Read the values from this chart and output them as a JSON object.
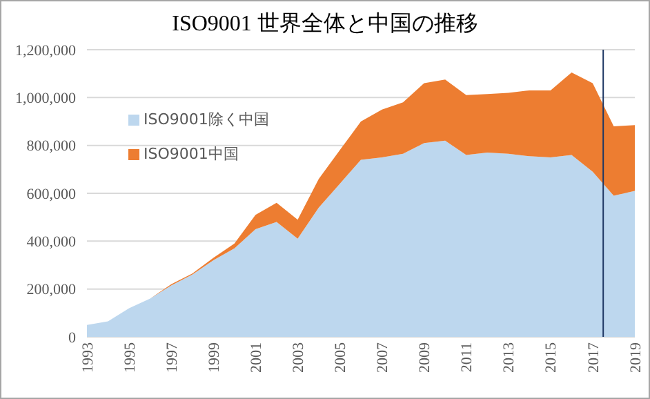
{
  "chart_data": {
    "type": "area",
    "title": "ISO9001  世界全体と中国の推移",
    "stacked": true,
    "x": [
      1993,
      1994,
      1995,
      1996,
      1997,
      1998,
      1999,
      2000,
      2001,
      2002,
      2003,
      2004,
      2005,
      2006,
      2007,
      2008,
      2009,
      2010,
      2011,
      2012,
      2013,
      2014,
      2015,
      2016,
      2017,
      2018,
      2019
    ],
    "series": [
      {
        "name": "ISO9001除く中国",
        "color": "#bdd7ee",
        "values": [
          50000,
          65000,
          120000,
          160000,
          215000,
          260000,
          320000,
          370000,
          450000,
          480000,
          410000,
          540000,
          640000,
          740000,
          750000,
          765000,
          810000,
          820000,
          760000,
          770000,
          765000,
          755000,
          750000,
          760000,
          690000,
          590000,
          610000
        ]
      },
      {
        "name": "ISO9001中国",
        "color": "#ed7d31",
        "values": [
          0,
          0,
          0,
          0,
          5000,
          5000,
          10000,
          20000,
          60000,
          80000,
          80000,
          120000,
          140000,
          160000,
          200000,
          215000,
          250000,
          255000,
          250000,
          245000,
          255000,
          275000,
          280000,
          345000,
          370000,
          290000,
          275000
        ]
      }
    ],
    "xlim": [
      1993,
      2019
    ],
    "xticks": [
      1993,
      1995,
      1997,
      1999,
      2001,
      2003,
      2005,
      2007,
      2009,
      2011,
      2013,
      2015,
      2017,
      2019
    ],
    "ylim": [
      0,
      1200000
    ],
    "yticks": [
      {
        "value": 0,
        "label": "0"
      },
      {
        "value": 200000,
        "label": "200,000"
      },
      {
        "value": 400000,
        "label": "400,000"
      },
      {
        "value": 600000,
        "label": "600,000"
      },
      {
        "value": 800000,
        "label": "800,000"
      },
      {
        "value": 1000000,
        "label": "1,000,000"
      },
      {
        "value": 1200000,
        "label": "1,200,000"
      }
    ],
    "ref_lines": [
      {
        "axis": "x",
        "value": 2017.5,
        "color": "#1f3864"
      }
    ],
    "grid": "y",
    "legend": "top left"
  }
}
